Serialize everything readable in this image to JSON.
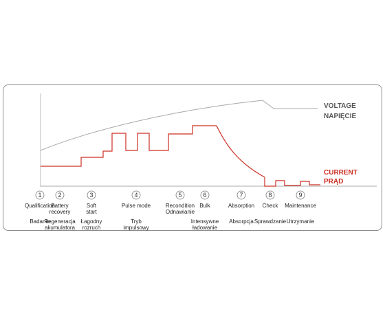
{
  "legend": {
    "voltage_en": "VOLTAGE",
    "voltage_pl": "NAPIĘCIE",
    "current_en": "CURRENT",
    "current_pl": "PRĄD",
    "voltage_color": "#8a8a8a",
    "current_color": "#cc2e22"
  },
  "stages": [
    {
      "num": "1",
      "en": [
        "Qualification"
      ],
      "pl": [
        "Badanie"
      ]
    },
    {
      "num": "2",
      "en": [
        "Battery",
        "recovery"
      ],
      "pl": [
        "Regeneracja",
        "akumulatora"
      ]
    },
    {
      "num": "3",
      "en": [
        "Soft",
        "start"
      ],
      "pl": [
        "Łagodny",
        "rozruch"
      ]
    },
    {
      "num": "4",
      "en": [
        "Pulse mode"
      ],
      "pl": [
        "Tryb",
        "impulsowy"
      ]
    },
    {
      "num": "5",
      "en": [
        "Recondition",
        "Odnawianie"
      ],
      "pl": []
    },
    {
      "num": "6",
      "en": [
        "Bulk"
      ],
      "pl": [
        "Intensywne",
        "ładowanie"
      ]
    },
    {
      "num": "7",
      "en": [
        "Absorption"
      ],
      "pl": [
        "Absorpcja"
      ]
    },
    {
      "num": "8",
      "en": [
        "Check"
      ],
      "pl": [
        "Sprawdzanie"
      ]
    },
    {
      "num": "9",
      "en": [
        "Maintenance"
      ],
      "pl": [
        "Utrzymanie"
      ]
    }
  ]
}
